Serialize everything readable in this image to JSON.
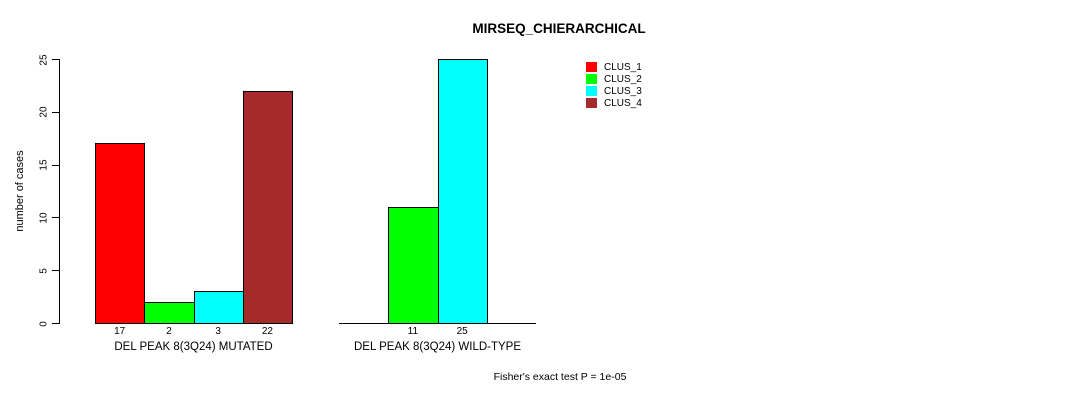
{
  "chart_data": {
    "type": "bar",
    "title": "MIRSEQ_CHIERARCHICAL",
    "ylabel": "number of cases",
    "xlabel": "",
    "ylim": [
      0,
      25
    ],
    "yticks": [
      0,
      5,
      10,
      15,
      20,
      25
    ],
    "grid": false,
    "legend_position": "top-right",
    "categories": [
      "DEL PEAK  8(3Q24) MUTATED",
      "DEL PEAK  8(3Q24) WILD-TYPE"
    ],
    "series": [
      {
        "name": "CLUS_1",
        "color": "#FF0000",
        "values": [
          17,
          0
        ]
      },
      {
        "name": "CLUS_2",
        "color": "#00FF00",
        "values": [
          2,
          11
        ]
      },
      {
        "name": "CLUS_3",
        "color": "#00FFFF",
        "values": [
          3,
          25
        ]
      },
      {
        "name": "CLUS_4",
        "color": "#A52A2A",
        "values": [
          22,
          0
        ]
      }
    ],
    "bar_value_labels": {
      "shown": [
        [
          "17",
          "2",
          "3",
          "22"
        ],
        [
          "11",
          "25"
        ]
      ],
      "show_zero_values": false
    },
    "annotation": "Fisher's exact test P = 1e-05"
  }
}
